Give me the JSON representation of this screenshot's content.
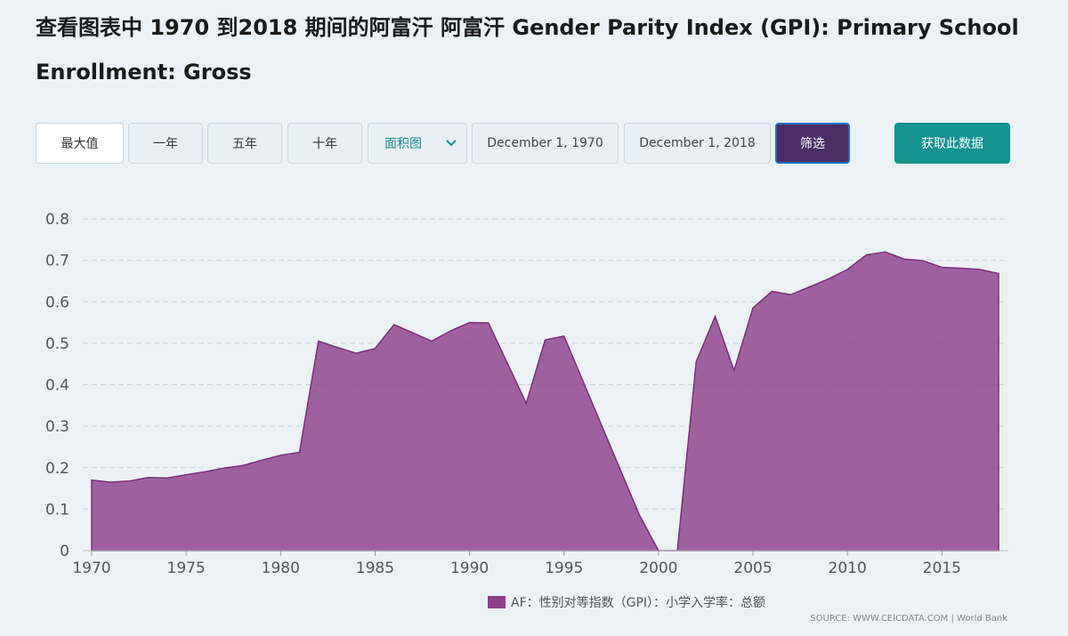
{
  "page": {
    "title": "查看图表中 1970 到2018 期间的阿富汗 阿富汗 Gender Parity Index (GPI): Primary School Enrollment: Gross"
  },
  "toolbar": {
    "range_max": "最大值",
    "range_1y": "一年",
    "range_5y": "五年",
    "range_10y": "十年",
    "chart_type_selected": "面积图",
    "date_start": "December 1, 1970",
    "date_end": "December 1, 2018",
    "filter_label": "筛选",
    "get_data_label": "获取此数据"
  },
  "legend": {
    "label": "AF：性别对等指数（GPI）：小学入学率：总额"
  },
  "source": {
    "text": "SOURCE: WWW.CEICDATA.COM | World Bank"
  },
  "colors": {
    "area_fill": "#8e3f8c",
    "area_stroke": "#7a2f78",
    "filter_button": "#4a2d63",
    "get_data_button": "#14938f",
    "select_text": "#1a8a8a"
  },
  "icons": {
    "dropdown": "chevron-down-icon"
  },
  "chart_data": {
    "type": "area",
    "title": "查看图表中 1970 到2018 期间的阿富汗 阿富汗 Gender Parity Index (GPI): Primary School Enrollment: Gross",
    "xlabel": "",
    "ylabel": "",
    "xlim": [
      1970,
      2018
    ],
    "ylim": [
      0,
      0.8
    ],
    "x_ticks": [
      "1970",
      "1975",
      "1980",
      "1985",
      "1990",
      "1995",
      "2000",
      "2005",
      "2010",
      "2015"
    ],
    "y_ticks": [
      "0",
      "0.1",
      "0.2",
      "0.3",
      "0.4",
      "0.5",
      "0.6",
      "0.7",
      "0.8"
    ],
    "grid": true,
    "legend_position": "bottom-right",
    "series": [
      {
        "name": "AF：性别对等指数（GPI）：小学入学率：总额",
        "x": [
          1970,
          1971,
          1972,
          1973,
          1974,
          1975,
          1976,
          1977,
          1978,
          1979,
          1980,
          1981,
          1982,
          1983,
          1984,
          1985,
          1986,
          1987,
          1988,
          1989,
          1990,
          1991,
          1993,
          1994,
          1995,
          1999,
          2000,
          2001,
          2002,
          2003,
          2004,
          2005,
          2006,
          2007,
          2008,
          2009,
          2010,
          2011,
          2012,
          2013,
          2014,
          2015,
          2016,
          2017,
          2018
        ],
        "values": [
          0.17,
          0.165,
          0.168,
          0.176,
          0.175,
          0.183,
          0.19,
          0.199,
          0.205,
          0.218,
          0.23,
          0.237,
          0.505,
          0.49,
          0.476,
          0.487,
          0.545,
          0.525,
          0.505,
          0.53,
          0.55,
          0.549,
          0.355,
          0.508,
          0.517,
          0.085,
          0.0,
          0.0,
          0.456,
          0.565,
          0.434,
          0.585,
          0.625,
          0.617,
          0.636,
          0.655,
          0.678,
          0.713,
          0.72,
          0.703,
          0.699,
          0.683,
          0.681,
          0.678,
          0.668
        ]
      }
    ]
  }
}
